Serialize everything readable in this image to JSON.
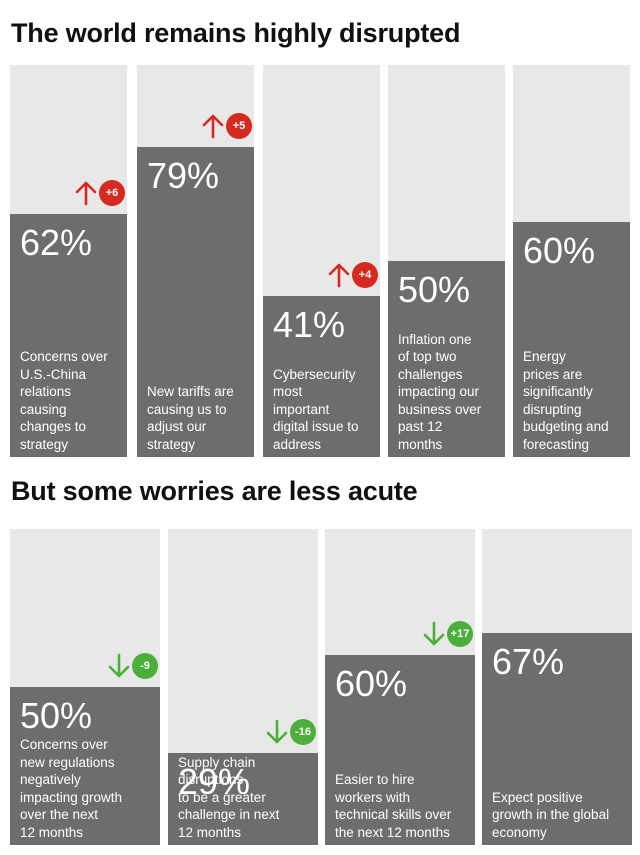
{
  "sections": [
    {
      "title": "The world remains highly disrupted",
      "columns": [
        {
          "value": "62%",
          "percent": 62,
          "description": "Concerns over\nU.S.-China\nrelations\ncausing\nchanges to\nstrategy",
          "change": "+6",
          "direction": "up"
        },
        {
          "value": "79%",
          "percent": 79,
          "description": "New tariffs are\ncausing us to\nadjust our\nstrategy",
          "change": "+5",
          "direction": "up"
        },
        {
          "value": "41%",
          "percent": 41,
          "description": "Cybersecurity\nmost\nimportant\ndigital issue to\naddress",
          "change": "+4",
          "direction": "up"
        },
        {
          "value": "50%",
          "percent": 50,
          "description": "Inflation one\nof top two\nchallenges\nimpacting our\nbusiness over\npast 12\nmonths",
          "change": null,
          "direction": null
        },
        {
          "value": "60%",
          "percent": 60,
          "description": "Energy\nprices are\nsignificantly\ndisrupting\nbudgeting and\nforecasting",
          "change": null,
          "direction": null
        }
      ]
    },
    {
      "title": "But some worries are less acute",
      "columns": [
        {
          "value": "50%",
          "percent": 50,
          "description": "Concerns over\nnew regulations\nnegatively\nimpacting growth\nover the next\n12 months",
          "change": "-9",
          "direction": "down"
        },
        {
          "value": "29%",
          "percent": 29,
          "description": "Supply chain\ndisruptions\nto be a greater\nchallenge in next\n12 months",
          "change": "-16",
          "direction": "down"
        },
        {
          "value": "60%",
          "percent": 60,
          "description": "Easier to hire\nworkers with\ntechnical skills over\nthe next 12 months",
          "change": "+17",
          "direction": "down"
        },
        {
          "value": "67%",
          "percent": 67,
          "description": "Expect positive\ngrowth in the global\neconomy",
          "change": null,
          "direction": null
        }
      ]
    }
  ],
  "colors": {
    "background_column": "#e8e8e8",
    "filled_column": "#6d6d6d",
    "increase": "#d42a20",
    "decrease": "#4caf3a",
    "title": "#111111"
  },
  "chart_data": [
    {
      "type": "bar",
      "title": "The world remains highly disrupted",
      "categories": [
        "Concerns over U.S.-China relations causing changes to strategy",
        "New tariffs are causing us to adjust our strategy",
        "Cybersecurity most important digital issue to address",
        "Inflation one of top two challenges impacting our business over past 12 months",
        "Energy prices are significantly disrupting budgeting and forecasting"
      ],
      "values": [
        62,
        79,
        41,
        50,
        60
      ],
      "changes": [
        "+6",
        "+5",
        "+4",
        null,
        null
      ],
      "ylim": [
        0,
        100
      ],
      "unit": "%"
    },
    {
      "type": "bar",
      "title": "But some worries are less acute",
      "categories": [
        "Concerns over new regulations negatively impacting growth over the next 12 months",
        "Supply chain disruptions to be a greater challenge in next 12 months",
        "Easier to hire workers with technical skills over the next 12 months",
        "Expect positive growth in the global economy"
      ],
      "values": [
        50,
        29,
        60,
        67
      ],
      "changes": [
        "-9",
        "-16",
        "+17",
        null
      ],
      "ylim": [
        0,
        100
      ],
      "unit": "%"
    }
  ]
}
